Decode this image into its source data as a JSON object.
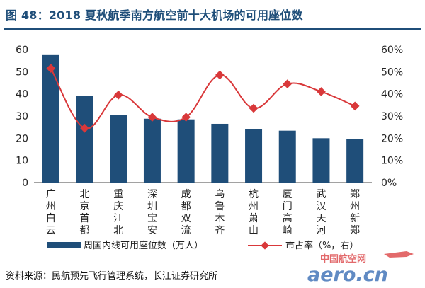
{
  "figure_label": "图 48：2018 夏秋航季南方航空前十大机场的可用座位数",
  "source_label": "资料来源：民航预先飞行管理系统，长江证券研究所",
  "watermark": {
    "line1": "中国航空网",
    "line2": "aero.cn"
  },
  "colors": {
    "bar": "#1f4e79",
    "line": "#d9383a",
    "text": "#222222",
    "title": "#1f4e79"
  },
  "chart_data": {
    "type": "bar+line",
    "categories": [
      "广州白云",
      "北京首都",
      "重庆江北",
      "深圳宝安",
      "成都双流",
      "乌鲁木齐",
      "杭州萧山",
      "厦门高崎",
      "武汉天河",
      "郑州新郑"
    ],
    "category_lines": [
      [
        "广",
        "州",
        "白",
        "云"
      ],
      [
        "北",
        "京",
        "首",
        "都"
      ],
      [
        "重",
        "庆",
        "江",
        "北"
      ],
      [
        "深",
        "圳",
        "宝",
        "安"
      ],
      [
        "成",
        "都",
        "双",
        "流"
      ],
      [
        "乌",
        "鲁",
        "木",
        "齐"
      ],
      [
        "杭",
        "州",
        "萧",
        "山"
      ],
      [
        "厦",
        "门",
        "高",
        "崎"
      ],
      [
        "武",
        "汉",
        "天",
        "河"
      ],
      [
        "郑",
        "州",
        "新",
        "郑"
      ]
    ],
    "series": [
      {
        "name": "周国内线可用座位数（万人）",
        "type": "bar",
        "axis": "left",
        "values": [
          57.5,
          39.0,
          30.5,
          28.8,
          28.5,
          26.5,
          24.0,
          23.4,
          20.0,
          19.6
        ]
      },
      {
        "name": "市占率（%，右）",
        "type": "line",
        "axis": "right",
        "values": [
          51.5,
          24.5,
          39.5,
          29.5,
          29.5,
          48.5,
          33.5,
          44.5,
          41.0,
          34.5
        ]
      }
    ],
    "y_left": {
      "min": 0,
      "max": 60,
      "ticks": [
        "0",
        "10",
        "20",
        "30",
        "40",
        "50",
        "60"
      ]
    },
    "y_right": {
      "min": 0,
      "max": 60,
      "ticks": [
        "0%",
        "10%",
        "20%",
        "30%",
        "40%",
        "50%",
        "60%"
      ]
    },
    "grid": false,
    "legend_position": "bottom"
  }
}
